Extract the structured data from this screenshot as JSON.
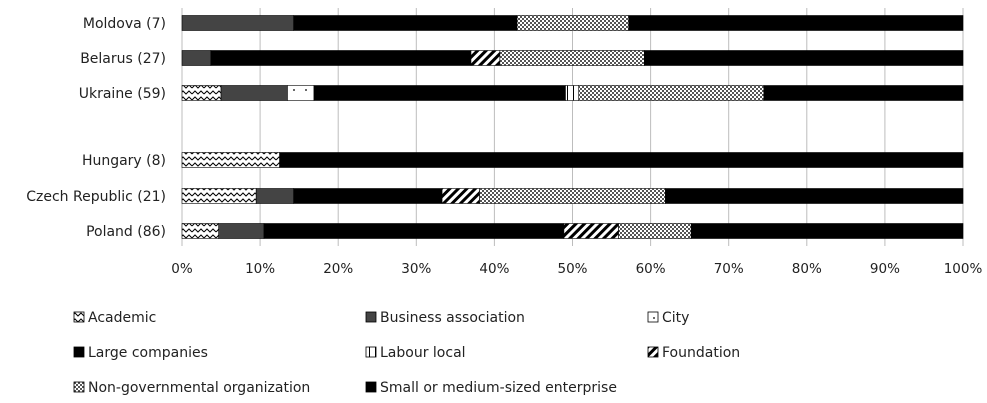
{
  "chart_data": {
    "type": "bar",
    "orientation": "horizontal",
    "stacked": "percent",
    "categories": [
      "Moldova (7)",
      "Belarus (27)",
      "Ukraine (59)",
      "Hungary (8)",
      "Czech Republic (21)",
      "Poland (86)"
    ],
    "series": [
      {
        "name": "Academic",
        "values": [
          0,
          0,
          5,
          12.5,
          9.5,
          4.7
        ]
      },
      {
        "name": "Business association",
        "values": [
          14.3,
          3.7,
          8.5,
          0,
          4.8,
          5.8
        ]
      },
      {
        "name": "City",
        "values": [
          0,
          0,
          3.4,
          0,
          0,
          0
        ]
      },
      {
        "name": "Large companies",
        "values": [
          28.6,
          33.3,
          32.2,
          0,
          19,
          38.4
        ]
      },
      {
        "name": "Labour local",
        "values": [
          0,
          0,
          1.7,
          0,
          0,
          0
        ]
      },
      {
        "name": "Foundation",
        "values": [
          0,
          3.7,
          0,
          0,
          4.8,
          7
        ]
      },
      {
        "name": "Non-governmental organization",
        "values": [
          14.3,
          18.5,
          23.7,
          0,
          23.8,
          9.3
        ]
      },
      {
        "name": "Small or medium-sized enterprise",
        "values": [
          42.8,
          40.8,
          25.5,
          87.5,
          38.1,
          34.8
        ]
      }
    ],
    "xlim": [
      0,
      100
    ],
    "xticks": [
      "0%",
      "10%",
      "20%",
      "30%",
      "40%",
      "50%",
      "60%",
      "70%",
      "80%",
      "90%",
      "100%"
    ],
    "grid": true,
    "legend_position": "bottom",
    "colors": {
      "Business association": "#444444",
      "Large companies": "#000000",
      "Small or medium-sized enterprise": "#000000"
    }
  }
}
